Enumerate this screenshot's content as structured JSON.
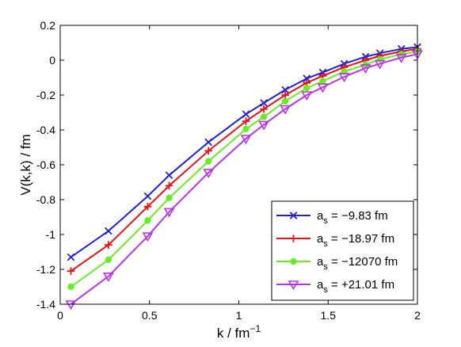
{
  "chart_data": {
    "type": "line",
    "xlabel": {
      "main": "k / fm",
      "sup": "−1"
    },
    "ylabel": "V(k,k) / fm",
    "xlim": [
      0,
      2
    ],
    "ylim": [
      -1.4,
      0.2
    ],
    "xticks": [
      0,
      0.5,
      1,
      1.5,
      2
    ],
    "xtick_labels": [
      "0",
      "0.5",
      "1",
      "1.5",
      "2"
    ],
    "yticks": [
      0.2,
      0,
      -0.2,
      -0.4,
      -0.6,
      -0.8,
      -1,
      -1.2,
      -1.4
    ],
    "ytick_labels": [
      "0.2",
      "0",
      "-0.2",
      "-0.4",
      "-0.6",
      "-0.8",
      "-1",
      "-1.2",
      "-1.4"
    ],
    "grid": false,
    "legend_position": "bottom-right",
    "x": [
      0.06,
      0.27,
      0.49,
      0.61,
      0.83,
      1.04,
      1.14,
      1.26,
      1.38,
      1.47,
      1.59,
      1.71,
      1.79,
      1.91,
      2.0
    ],
    "series": [
      {
        "name": {
          "main": "a",
          "sub": "s",
          "rest": " = −9.83 fm"
        },
        "color": "#2020e0",
        "marker": "x",
        "values": [
          -1.13,
          -0.98,
          -0.78,
          -0.66,
          -0.47,
          -0.31,
          -0.245,
          -0.17,
          -0.105,
          -0.07,
          -0.02,
          0.02,
          0.04,
          0.065,
          0.075
        ]
      },
      {
        "name": {
          "main": "a",
          "sub": "s",
          "rest": " = −18.97 fm"
        },
        "color": "#ee1111",
        "marker": "plus",
        "values": [
          -1.21,
          -1.06,
          -0.84,
          -0.72,
          -0.52,
          -0.35,
          -0.28,
          -0.2,
          -0.13,
          -0.09,
          -0.04,
          0.0,
          0.025,
          0.05,
          0.065
        ]
      },
      {
        "name": {
          "main": "a",
          "sub": "s",
          "rest": " = −12070 fm"
        },
        "color": "#66ee22",
        "marker": "dot",
        "values": [
          -1.3,
          -1.145,
          -0.92,
          -0.79,
          -0.58,
          -0.395,
          -0.325,
          -0.235,
          -0.16,
          -0.12,
          -0.065,
          -0.025,
          0.005,
          0.035,
          0.05
        ]
      },
      {
        "name": {
          "main": "a",
          "sub": "s",
          "rest": " = +21.01 fm"
        },
        "color": "#bb33ee",
        "marker": "triangle-down",
        "values": [
          -1.4,
          -1.24,
          -1.01,
          -0.87,
          -0.645,
          -0.45,
          -0.37,
          -0.28,
          -0.2,
          -0.155,
          -0.095,
          -0.045,
          -0.02,
          0.015,
          0.035
        ]
      }
    ]
  }
}
